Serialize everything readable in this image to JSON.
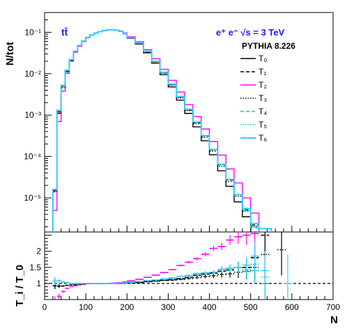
{
  "colors": {
    "T0": "#000000",
    "T1": "#000000",
    "T2": "#ff00ff",
    "T3": "#000000",
    "T4": "#00cccc",
    "T5": "#00cccc",
    "T6": "#33ccff",
    "annotation": "#1a1aff"
  },
  "chart_data": [
    {
      "type": "line",
      "panel": "top",
      "style": "histogram",
      "ylabel": "N/tot",
      "yscale": "log",
      "ylim": [
        1.5e-06,
        0.3
      ],
      "xlim": [
        0,
        700
      ],
      "grid": false,
      "legend_placement": "top-right",
      "annotations": [
        "tt̄",
        "e⁺ e⁻ √s = 3 TeV",
        "PYTHIA 8.226"
      ],
      "bin_edges": [
        20,
        30,
        40,
        50,
        60,
        70,
        80,
        90,
        100,
        110,
        120,
        130,
        140,
        150,
        160,
        170,
        180,
        190,
        200,
        220,
        240,
        260,
        280,
        300,
        320,
        340,
        360,
        380,
        400,
        420,
        440,
        460,
        480,
        500,
        520,
        550,
        600,
        650
      ],
      "series": [
        {
          "name": "T₀",
          "values": [
            1.5e-05,
            0.0012,
            0.005,
            0.012,
            0.022,
            0.035,
            0.048,
            0.062,
            0.075,
            0.086,
            0.096,
            0.104,
            0.11,
            0.114,
            0.115,
            0.112,
            0.104,
            0.092,
            0.072,
            0.052,
            0.032,
            0.018,
            0.0095,
            0.0048,
            0.0023,
            0.0011,
            0.00052,
            0.00024,
            0.00011,
            4.5e-05,
            1.9e-05,
            8e-06,
            3.5e-06,
            1.3e-06,
            null,
            null,
            null
          ]
        },
        {
          "name": "T₁",
          "values": [
            1.4e-05,
            0.0011,
            0.0046,
            0.0112,
            0.021,
            0.034,
            0.047,
            0.061,
            0.075,
            0.086,
            0.096,
            0.104,
            0.11,
            0.114,
            0.115,
            0.112,
            0.105,
            0.094,
            0.074,
            0.054,
            0.034,
            0.0195,
            0.0105,
            0.0054,
            0.0027,
            0.00132,
            0.00065,
            0.00031,
            0.000145,
            6.3e-05,
            2.7e-05,
            1.2e-05,
            5.2e-06,
            2.2e-06,
            1.1e-06,
            null,
            null
          ]
        },
        {
          "name": "T₂",
          "values": [
            5e-06,
            0.0007,
            0.0038,
            0.0102,
            0.02,
            0.033,
            0.046,
            0.06,
            0.074,
            0.086,
            0.096,
            0.104,
            0.11,
            0.114,
            0.116,
            0.113,
            0.107,
            0.097,
            0.078,
            0.059,
            0.038,
            0.023,
            0.0128,
            0.0069,
            0.0036,
            0.0018,
            0.00092,
            0.00046,
            0.00023,
            0.000108,
            5e-05,
            2.3e-05,
            1e-05,
            4.3e-06,
            1.8e-06,
            1e-06,
            null
          ]
        },
        {
          "name": "T₃",
          "values": [
            1.4e-05,
            0.0011,
            0.0046,
            0.0112,
            0.021,
            0.034,
            0.047,
            0.061,
            0.075,
            0.086,
            0.096,
            0.104,
            0.11,
            0.114,
            0.115,
            0.112,
            0.105,
            0.094,
            0.074,
            0.054,
            0.034,
            0.0195,
            0.0104,
            0.0053,
            0.0026,
            0.00128,
            0.00062,
            0.00029,
            0.000135,
            5.8e-05,
            2.5e-05,
            1.1e-05,
            4.8e-06,
            2e-06,
            1e-06,
            null,
            null
          ]
        },
        {
          "name": "T₄",
          "values": [
            1.6e-05,
            0.0013,
            0.0052,
            0.0122,
            0.022,
            0.035,
            0.048,
            0.062,
            0.075,
            0.086,
            0.096,
            0.104,
            0.11,
            0.114,
            0.115,
            0.112,
            0.105,
            0.094,
            0.075,
            0.055,
            0.035,
            0.02,
            0.0108,
            0.0056,
            0.0028,
            0.00138,
            0.00068,
            0.00032,
            0.000148,
            6.5e-05,
            2.8e-05,
            1.2e-05,
            4.8e-06,
            1.9e-06,
            1.3e-06,
            null,
            null
          ]
        },
        {
          "name": "T₅",
          "values": [
            1.6e-05,
            0.0013,
            0.0052,
            0.0122,
            0.022,
            0.035,
            0.048,
            0.062,
            0.075,
            0.086,
            0.096,
            0.104,
            0.11,
            0.114,
            0.115,
            0.112,
            0.105,
            0.094,
            0.075,
            0.055,
            0.035,
            0.02,
            0.0108,
            0.0056,
            0.0028,
            0.00138,
            0.00068,
            0.00032,
            0.000148,
            6.5e-05,
            2.8e-05,
            1.2e-05,
            5e-06,
            2.1e-06,
            1.5e-06,
            null,
            null
          ]
        },
        {
          "name": "T₆",
          "values": [
            1.6e-05,
            0.0013,
            0.0052,
            0.0122,
            0.022,
            0.035,
            0.048,
            0.062,
            0.075,
            0.086,
            0.096,
            0.104,
            0.11,
            0.114,
            0.115,
            0.112,
            0.105,
            0.094,
            0.075,
            0.055,
            0.035,
            0.02,
            0.0108,
            0.0056,
            0.0028,
            0.00138,
            0.00068,
            0.00032,
            0.000148,
            6.5e-05,
            2.8e-05,
            1.2e-05,
            5.5e-06,
            2.4e-06,
            1.8e-06,
            null,
            null
          ]
        }
      ]
    },
    {
      "type": "scatter",
      "panel": "ratio",
      "xlabel": "N",
      "ylabel": "T_i / T_0",
      "xlim": [
        0,
        700
      ],
      "ylim": [
        0.5,
        2.6
      ],
      "xticks": [
        0,
        100,
        200,
        300,
        400,
        500,
        600,
        700
      ],
      "yticks": [
        1,
        1.5,
        2
      ],
      "reference_line": 1,
      "series": [
        {
          "name": "T₁",
          "x": [
            25,
            35,
            45,
            55,
            65,
            75,
            85,
            95,
            105,
            115,
            125,
            135,
            145,
            155,
            165,
            175,
            185,
            195,
            210,
            230,
            250,
            270,
            290,
            310,
            330,
            350,
            370,
            390,
            410,
            430,
            450,
            470,
            490,
            510,
            535
          ],
          "y": [
            0.93,
            0.92,
            0.92,
            0.94,
            0.95,
            0.96,
            0.97,
            0.98,
            1.0,
            1.0,
            1.0,
            1.0,
            1.0,
            1.0,
            1.0,
            1.0,
            1.0,
            1.01,
            1.02,
            1.03,
            1.06,
            1.08,
            1.1,
            1.12,
            1.15,
            1.19,
            1.25,
            1.29,
            1.32,
            1.38,
            1.42,
            1.5,
            1.5,
            1.8,
            2.5
          ],
          "err": [
            0.1,
            0.05,
            0.02,
            0.01,
            0.01,
            0.01,
            0.01,
            0.01,
            0.01,
            0.01,
            0.01,
            0.01,
            0.01,
            0.01,
            0.01,
            0.01,
            0.01,
            0.01,
            0.01,
            0.01,
            0.01,
            0.01,
            0.01,
            0.02,
            0.02,
            0.03,
            0.04,
            0.05,
            0.07,
            0.1,
            0.12,
            0.18,
            0.25,
            0.4,
            0.6
          ]
        },
        {
          "name": "T₂",
          "x": [
            25,
            35,
            45,
            55,
            65,
            75,
            85,
            95,
            105,
            115,
            125,
            135,
            145,
            155,
            165,
            175,
            185,
            195,
            210,
            230,
            250,
            270,
            290,
            310,
            330,
            350,
            370,
            390,
            410,
            430,
            450,
            470,
            490,
            510
          ],
          "y": [
            0.4,
            0.6,
            0.75,
            0.85,
            0.9,
            0.93,
            0.96,
            0.97,
            0.99,
            1.0,
            1.0,
            1.0,
            1.0,
            1.0,
            1.01,
            1.02,
            1.03,
            1.05,
            1.08,
            1.13,
            1.19,
            1.26,
            1.34,
            1.43,
            1.56,
            1.66,
            1.77,
            1.91,
            2.09,
            2.15,
            2.35,
            2.45,
            2.5,
            2.55
          ],
          "err": [
            0.2,
            0.08,
            0.03,
            0.01,
            0.01,
            0.01,
            0.01,
            0.01,
            0.01,
            0.01,
            0.01,
            0.01,
            0.01,
            0.01,
            0.01,
            0.01,
            0.01,
            0.01,
            0.01,
            0.01,
            0.01,
            0.01,
            0.02,
            0.02,
            0.03,
            0.04,
            0.05,
            0.06,
            0.08,
            0.11,
            0.15,
            0.22,
            0.3,
            0.45
          ]
        },
        {
          "name": "T₃",
          "x": [
            25,
            35,
            45,
            55,
            65,
            75,
            85,
            95,
            105,
            115,
            125,
            135,
            145,
            155,
            165,
            175,
            185,
            195,
            210,
            230,
            250,
            270,
            290,
            310,
            330,
            350,
            370,
            390,
            410,
            430,
            450,
            470,
            490,
            510,
            535,
            575
          ],
          "y": [
            0.93,
            0.92,
            0.92,
            0.94,
            0.95,
            0.96,
            0.97,
            0.98,
            1.0,
            1.0,
            1.0,
            1.0,
            1.0,
            1.0,
            1.0,
            1.0,
            1.0,
            1.01,
            1.02,
            1.03,
            1.05,
            1.07,
            1.09,
            1.1,
            1.12,
            1.15,
            1.18,
            1.21,
            1.24,
            1.28,
            1.3,
            1.35,
            1.38,
            1.5,
            1.9,
            2.05
          ],
          "err": [
            0.1,
            0.05,
            0.02,
            0.01,
            0.01,
            0.01,
            0.01,
            0.01,
            0.01,
            0.01,
            0.01,
            0.01,
            0.01,
            0.01,
            0.01,
            0.01,
            0.01,
            0.01,
            0.01,
            0.01,
            0.01,
            0.01,
            0.01,
            0.02,
            0.02,
            0.03,
            0.04,
            0.05,
            0.07,
            0.1,
            0.12,
            0.18,
            0.25,
            0.4,
            0.6,
            0.8
          ]
        },
        {
          "name": "T₄",
          "x": [
            25,
            35,
            45,
            55,
            65,
            75,
            85,
            95,
            105,
            115,
            125,
            135,
            145,
            155,
            165,
            175,
            185,
            195,
            210,
            230,
            250,
            270,
            290,
            310,
            330,
            350,
            370,
            390,
            410,
            430,
            450,
            470,
            490,
            510,
            535
          ],
          "y": [
            1.07,
            1.08,
            1.04,
            1.02,
            1.0,
            1.0,
            1.0,
            1.0,
            1.0,
            1.0,
            1.0,
            1.0,
            1.0,
            1.0,
            1.0,
            1.0,
            1.01,
            1.02,
            1.04,
            1.06,
            1.09,
            1.11,
            1.14,
            1.17,
            1.22,
            1.25,
            1.3,
            1.33,
            1.35,
            1.44,
            1.47,
            1.5,
            1.37,
            1.4,
            1.0
          ],
          "err": [
            0.12,
            0.05,
            0.02,
            0.01,
            0.01,
            0.01,
            0.01,
            0.01,
            0.01,
            0.01,
            0.01,
            0.01,
            0.01,
            0.01,
            0.01,
            0.01,
            0.01,
            0.01,
            0.01,
            0.01,
            0.01,
            0.01,
            0.01,
            0.02,
            0.02,
            0.03,
            0.04,
            0.05,
            0.07,
            0.1,
            0.12,
            0.18,
            0.25,
            0.4,
            0.5
          ]
        },
        {
          "name": "T₅",
          "x": [
            25,
            35,
            45,
            55,
            65,
            75,
            85,
            95,
            105,
            115,
            125,
            135,
            145,
            155,
            165,
            175,
            185,
            195,
            210,
            230,
            250,
            270,
            290,
            310,
            330,
            350,
            370,
            390,
            410,
            430,
            450,
            470,
            490,
            510,
            535
          ],
          "y": [
            1.07,
            1.08,
            1.04,
            1.02,
            1.0,
            1.0,
            1.0,
            1.0,
            1.0,
            1.0,
            1.0,
            1.0,
            1.0,
            1.0,
            1.0,
            1.0,
            1.01,
            1.02,
            1.04,
            1.06,
            1.09,
            1.11,
            1.14,
            1.17,
            1.22,
            1.25,
            1.3,
            1.33,
            1.35,
            1.44,
            1.47,
            1.5,
            1.43,
            1.6,
            1.2
          ],
          "err": [
            0.12,
            0.05,
            0.02,
            0.01,
            0.01,
            0.01,
            0.01,
            0.01,
            0.01,
            0.01,
            0.01,
            0.01,
            0.01,
            0.01,
            0.01,
            0.01,
            0.01,
            0.01,
            0.01,
            0.01,
            0.01,
            0.01,
            0.01,
            0.02,
            0.02,
            0.03,
            0.04,
            0.05,
            0.07,
            0.1,
            0.12,
            0.18,
            0.25,
            0.4,
            0.5
          ]
        },
        {
          "name": "T₆",
          "x": [
            25,
            35,
            45,
            55,
            65,
            75,
            85,
            95,
            105,
            115,
            125,
            135,
            145,
            155,
            165,
            175,
            185,
            195,
            210,
            230,
            250,
            270,
            290,
            310,
            330,
            350,
            370,
            390,
            410,
            430,
            450,
            470,
            490,
            510,
            535,
            590
          ],
          "y": [
            1.07,
            1.08,
            1.04,
            1.02,
            1.0,
            1.0,
            1.0,
            1.0,
            1.0,
            1.0,
            1.0,
            1.0,
            1.0,
            1.0,
            1.0,
            1.0,
            1.01,
            1.02,
            1.04,
            1.06,
            1.09,
            1.11,
            1.14,
            1.17,
            1.22,
            1.25,
            1.3,
            1.33,
            1.35,
            1.44,
            1.47,
            1.5,
            1.57,
            1.85,
            1.4,
            1.0
          ],
          "err": [
            0.12,
            0.05,
            0.02,
            0.01,
            0.01,
            0.01,
            0.01,
            0.01,
            0.01,
            0.01,
            0.01,
            0.01,
            0.01,
            0.01,
            0.01,
            0.01,
            0.01,
            0.01,
            0.01,
            0.01,
            0.01,
            0.01,
            0.01,
            0.02,
            0.02,
            0.03,
            0.04,
            0.05,
            0.07,
            0.1,
            0.12,
            0.18,
            0.25,
            0.45,
            0.6,
            0.9
          ]
        }
      ]
    }
  ],
  "top_ytick_labels": [
    "10⁻⁵",
    "10⁻⁴",
    "10⁻³",
    "10⁻²",
    "10⁻¹"
  ],
  "top_ytick_values": [
    1e-05,
    0.0001,
    0.001,
    0.01,
    0.1
  ],
  "ratio_ytick_labels": [
    "1",
    "1.5",
    "2"
  ],
  "xtick_labels": [
    "0",
    "100",
    "200",
    "300",
    "400",
    "500",
    "600",
    "700"
  ]
}
